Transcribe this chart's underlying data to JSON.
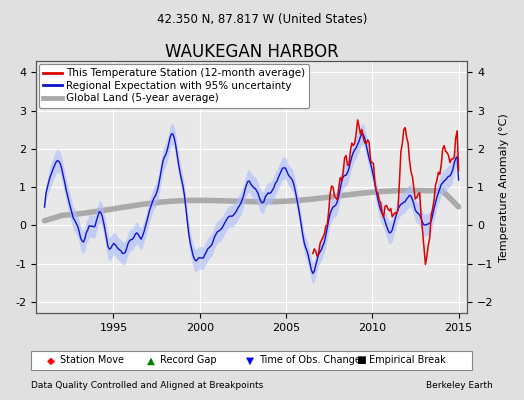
{
  "title": "WAUKEGAN HARBOR",
  "subtitle": "42.350 N, 87.817 W (United States)",
  "ylabel": "Temperature Anomaly (°C)",
  "footer_left": "Data Quality Controlled and Aligned at Breakpoints",
  "footer_right": "Berkeley Earth",
  "xlim": [
    1990.5,
    2015.5
  ],
  "ylim": [
    -2.3,
    4.3
  ],
  "yticks": [
    -2,
    -1,
    0,
    1,
    2,
    3,
    4
  ],
  "xticks": [
    1995,
    2000,
    2005,
    2010,
    2015
  ],
  "bg_color": "#e0e0e0",
  "plot_bg": "#e8e8e8",
  "station_color": "#dd0000",
  "regional_color": "#1111cc",
  "uncertainty_color": "#aabbff",
  "global_color": "#aaaaaa",
  "grid_color": "#ffffff",
  "title_fontsize": 12,
  "subtitle_fontsize": 8.5,
  "axis_fontsize": 8,
  "ylabel_fontsize": 8,
  "legend_fontsize": 7.5
}
